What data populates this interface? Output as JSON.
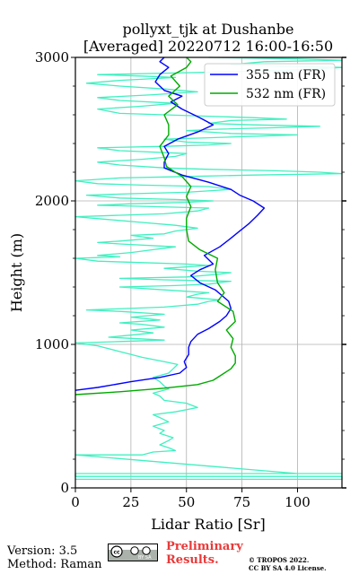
{
  "chart_data": {
    "type": "line",
    "title_line1": "pollyxt_tjk at Dushanbe",
    "title_line2": "[Averaged] 20220712 16:00-16:50",
    "xlabel": "Lidar Ratio [Sr]",
    "ylabel": "Height (m)",
    "xlim": [
      0,
      120
    ],
    "ylim": [
      0,
      3000
    ],
    "xticks": [
      0,
      25,
      50,
      75,
      100
    ],
    "yticks": [
      0,
      1000,
      2000,
      3000
    ],
    "grid": true,
    "legend_position": "top-right",
    "series": [
      {
        "name": "355 nm (FR)",
        "color": "#0000ff",
        "points": [
          [
            0,
            680
          ],
          [
            10,
            700
          ],
          [
            25,
            740
          ],
          [
            38,
            770
          ],
          [
            47,
            800
          ],
          [
            50,
            840
          ],
          [
            49,
            880
          ],
          [
            51,
            930
          ],
          [
            51,
            980
          ],
          [
            52,
            1020
          ],
          [
            55,
            1070
          ],
          [
            60,
            1110
          ],
          [
            65,
            1160
          ],
          [
            68,
            1200
          ],
          [
            70,
            1250
          ],
          [
            69,
            1300
          ],
          [
            66,
            1340
          ],
          [
            63,
            1380
          ],
          [
            56,
            1430
          ],
          [
            52,
            1480
          ],
          [
            56,
            1520
          ],
          [
            62,
            1560
          ],
          [
            58,
            1620
          ],
          [
            65,
            1680
          ],
          [
            70,
            1740
          ],
          [
            74,
            1790
          ],
          [
            78,
            1840
          ],
          [
            82,
            1900
          ],
          [
            85,
            1950
          ],
          [
            80,
            2000
          ],
          [
            74,
            2040
          ],
          [
            70,
            2080
          ],
          [
            60,
            2130
          ],
          [
            48,
            2180
          ],
          [
            40,
            2230
          ],
          [
            40,
            2270
          ],
          [
            42,
            2330
          ],
          [
            40,
            2380
          ],
          [
            46,
            2430
          ],
          [
            55,
            2480
          ],
          [
            62,
            2530
          ],
          [
            56,
            2580
          ],
          [
            48,
            2640
          ],
          [
            43,
            2690
          ],
          [
            48,
            2730
          ],
          [
            40,
            2770
          ],
          [
            36,
            2830
          ],
          [
            38,
            2880
          ],
          [
            42,
            2930
          ],
          [
            38,
            2970
          ],
          [
            40,
            3000
          ]
        ]
      },
      {
        "name": "532 nm (FR)",
        "color": "#00aa00",
        "points": [
          [
            0,
            650
          ],
          [
            20,
            670
          ],
          [
            40,
            695
          ],
          [
            55,
            720
          ],
          [
            62,
            750
          ],
          [
            66,
            790
          ],
          [
            70,
            830
          ],
          [
            72,
            870
          ],
          [
            72,
            920
          ],
          [
            70,
            980
          ],
          [
            71,
            1040
          ],
          [
            68,
            1100
          ],
          [
            72,
            1160
          ],
          [
            71,
            1230
          ],
          [
            64,
            1300
          ],
          [
            67,
            1360
          ],
          [
            64,
            1430
          ],
          [
            63,
            1520
          ],
          [
            64,
            1600
          ],
          [
            56,
            1660
          ],
          [
            51,
            1720
          ],
          [
            50,
            1800
          ],
          [
            50,
            1880
          ],
          [
            52,
            1960
          ],
          [
            50,
            2030
          ],
          [
            52,
            2100
          ],
          [
            48,
            2170
          ],
          [
            41,
            2240
          ],
          [
            40,
            2300
          ],
          [
            38,
            2380
          ],
          [
            42,
            2460
          ],
          [
            42,
            2530
          ],
          [
            40,
            2600
          ],
          [
            46,
            2670
          ],
          [
            42,
            2730
          ],
          [
            47,
            2800
          ],
          [
            43,
            2870
          ],
          [
            50,
            2930
          ],
          [
            52,
            2970
          ],
          [
            50,
            3000
          ]
        ]
      },
      {
        "name": "",
        "color": "#40f0c0",
        "points": [
          [
            0,
            60
          ],
          [
            120,
            60
          ],
          [
            120,
            80
          ],
          [
            0,
            80
          ],
          [
            0,
            100
          ],
          [
            120,
            100
          ],
          [
            100,
            100
          ],
          [
            0,
            230
          ],
          [
            30,
            230
          ],
          [
            35,
            250
          ],
          [
            45,
            260
          ],
          [
            42,
            280
          ],
          [
            38,
            300
          ],
          [
            42,
            330
          ],
          [
            44,
            350
          ],
          [
            38,
            380
          ],
          [
            40,
            400
          ],
          [
            35,
            430
          ],
          [
            42,
            460
          ],
          [
            38,
            490
          ],
          [
            35,
            510
          ],
          [
            45,
            530
          ],
          [
            55,
            560
          ],
          [
            50,
            590
          ],
          [
            40,
            610
          ],
          [
            38,
            640
          ],
          [
            35,
            660
          ],
          [
            42,
            690
          ],
          [
            40,
            710
          ],
          [
            38,
            740
          ],
          [
            35,
            770
          ],
          [
            42,
            800
          ],
          [
            44,
            830
          ],
          [
            46,
            860
          ],
          [
            40,
            880
          ],
          [
            30,
            910
          ],
          [
            20,
            950
          ],
          [
            10,
            990
          ],
          [
            0,
            1010
          ],
          [
            20,
            1020
          ],
          [
            40,
            1030
          ],
          [
            15,
            1050
          ],
          [
            35,
            1080
          ],
          [
            25,
            1100
          ],
          [
            40,
            1120
          ],
          [
            30,
            1140
          ],
          [
            20,
            1150
          ],
          [
            38,
            1170
          ],
          [
            25,
            1190
          ],
          [
            40,
            1210
          ],
          [
            20,
            1230
          ],
          [
            5,
            1240
          ],
          [
            40,
            1260
          ],
          [
            55,
            1280
          ],
          [
            60,
            1300
          ],
          [
            65,
            1310
          ],
          [
            50,
            1330
          ],
          [
            55,
            1350
          ],
          [
            60,
            1360
          ],
          [
            40,
            1380
          ],
          [
            20,
            1400
          ],
          [
            45,
            1410
          ],
          [
            60,
            1420
          ],
          [
            70,
            1440
          ],
          [
            40,
            1450
          ],
          [
            20,
            1460
          ],
          [
            50,
            1470
          ],
          [
            65,
            1490
          ],
          [
            70,
            1500
          ],
          [
            55,
            1510
          ],
          [
            40,
            1530
          ],
          [
            60,
            1550
          ],
          [
            50,
            1560
          ],
          [
            30,
            1570
          ],
          [
            10,
            1580
          ],
          [
            0,
            1600
          ],
          [
            20,
            1610
          ],
          [
            10,
            1620
          ],
          [
            25,
            1640
          ],
          [
            35,
            1660
          ],
          [
            45,
            1680
          ],
          [
            20,
            1700
          ],
          [
            10,
            1710
          ],
          [
            20,
            1720
          ],
          [
            35,
            1740
          ],
          [
            25,
            1760
          ],
          [
            40,
            1770
          ],
          [
            45,
            1790
          ],
          [
            55,
            1810
          ],
          [
            45,
            1830
          ],
          [
            30,
            1850
          ],
          [
            15,
            1870
          ],
          [
            0,
            1890
          ],
          [
            20,
            1900
          ],
          [
            40,
            1910
          ],
          [
            55,
            1930
          ],
          [
            60,
            1950
          ],
          [
            35,
            1960
          ],
          [
            10,
            1970
          ],
          [
            25,
            1980
          ],
          [
            50,
            1990
          ],
          [
            62,
            2000
          ],
          [
            45,
            2010
          ],
          [
            20,
            2020
          ],
          [
            5,
            2040
          ],
          [
            25,
            2050
          ],
          [
            50,
            2060
          ],
          [
            70,
            2080
          ],
          [
            60,
            2100
          ],
          [
            30,
            2110
          ],
          [
            10,
            2120
          ],
          [
            0,
            2140
          ],
          [
            20,
            2160
          ],
          [
            50,
            2170
          ],
          [
            80,
            2180
          ],
          [
            120,
            2190
          ],
          [
            110,
            2200
          ],
          [
            90,
            2210
          ],
          [
            60,
            2220
          ],
          [
            40,
            2230
          ],
          [
            20,
            2250
          ],
          [
            10,
            2270
          ],
          [
            30,
            2290
          ],
          [
            45,
            2310
          ],
          [
            50,
            2330
          ],
          [
            20,
            2350
          ],
          [
            10,
            2370
          ],
          [
            40,
            2380
          ],
          [
            60,
            2390
          ],
          [
            70,
            2400
          ],
          [
            50,
            2410
          ],
          [
            40,
            2430
          ],
          [
            60,
            2440
          ],
          [
            80,
            2450
          ],
          [
            100,
            2460
          ],
          [
            70,
            2470
          ],
          [
            50,
            2490
          ],
          [
            65,
            2500
          ],
          [
            90,
            2510
          ],
          [
            110,
            2520
          ],
          [
            80,
            2530
          ],
          [
            60,
            2540
          ],
          [
            70,
            2560
          ],
          [
            95,
            2570
          ],
          [
            80,
            2580
          ],
          [
            60,
            2590
          ],
          [
            40,
            2600
          ],
          [
            20,
            2610
          ],
          [
            10,
            2640
          ],
          [
            30,
            2660
          ],
          [
            45,
            2680
          ],
          [
            20,
            2700
          ],
          [
            10,
            2720
          ],
          [
            35,
            2740
          ],
          [
            55,
            2760
          ],
          [
            40,
            2780
          ],
          [
            20,
            2800
          ],
          [
            5,
            2820
          ],
          [
            20,
            2840
          ],
          [
            45,
            2860
          ],
          [
            30,
            2870
          ],
          [
            10,
            2880
          ],
          [
            40,
            2890
          ],
          [
            70,
            2900
          ],
          [
            95,
            2910
          ],
          [
            120,
            2930
          ],
          [
            90,
            2940
          ],
          [
            70,
            2950
          ],
          [
            85,
            2970
          ],
          [
            120,
            2980
          ],
          [
            100,
            2990
          ],
          [
            60,
            3000
          ]
        ]
      }
    ]
  },
  "footer": {
    "version": "Version: 3.5",
    "method": "Method: Raman",
    "preliminary_line1": "Preliminary",
    "preliminary_line2": "Results.",
    "copyright_line1": "© TROPOS 2022.",
    "copyright_line2": "CC BY SA 4.0 License.",
    "license_badge_text": "BY SA"
  }
}
